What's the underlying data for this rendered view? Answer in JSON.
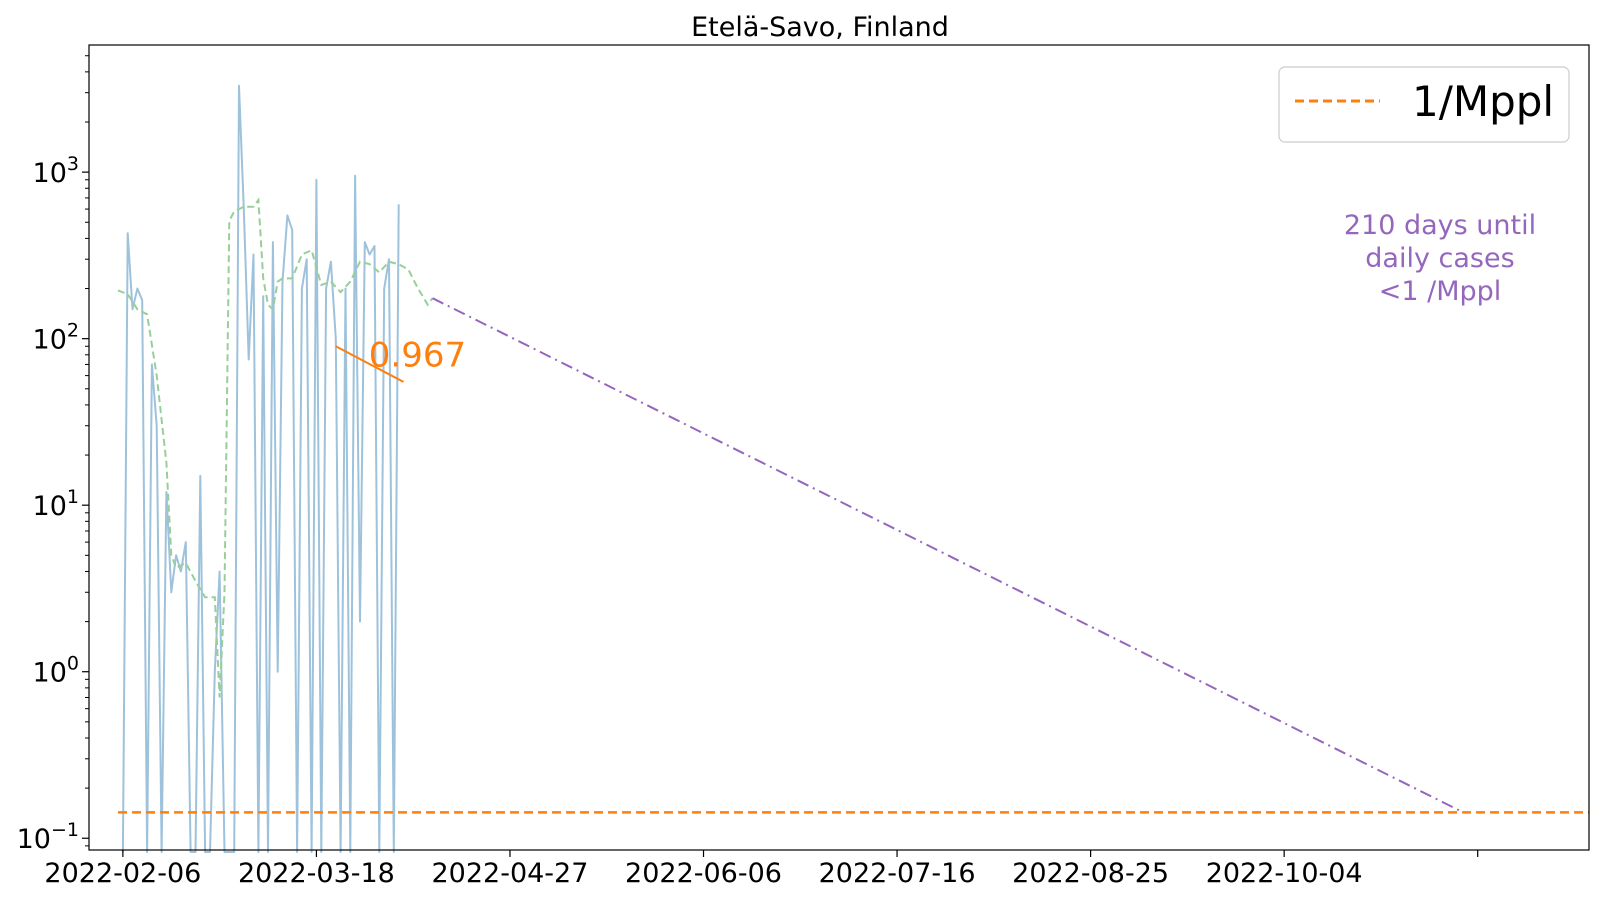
{
  "chart_data": {
    "type": "line",
    "title": "Etelä-Savo, Finland",
    "xlabel": "",
    "ylabel": "",
    "yscale": "log",
    "ylim": [
      0.085,
      5800
    ],
    "xlim": [
      "2022-01-30",
      "2022-12-06"
    ],
    "grid": false,
    "legend_position": "top-right",
    "legend": [
      "1/Mppl"
    ],
    "x_ticks": [
      "2022-02-06",
      "2022-03-18",
      "2022-04-27",
      "2022-06-06",
      "2022-07-16",
      "2022-08-25",
      "2022-10-04",
      "2022-11-13"
    ],
    "x_tick_labels": [
      "2022-02-06",
      "2022-03-18",
      "2022-04-27",
      "2022-06-06",
      "2022-07-16",
      "2022-08-25",
      "2022-10-04",
      ""
    ],
    "y_ticks": [
      {
        "value": 0.1,
        "mantissa": "10",
        "exponent": "−1"
      },
      {
        "value": 1,
        "mantissa": "10",
        "exponent": "0"
      },
      {
        "value": 10,
        "mantissa": "10",
        "exponent": "1"
      },
      {
        "value": 100,
        "mantissa": "10",
        "exponent": "2"
      },
      {
        "value": 1000,
        "mantissa": "10",
        "exponent": "3"
      }
    ],
    "series": [
      {
        "name": "",
        "role": "daily cases per million",
        "color": "#9ec2dc",
        "style": "solid",
        "x": [
          "2022-02-06",
          "2022-02-07",
          "2022-02-08",
          "2022-02-09",
          "2022-02-10",
          "2022-02-11",
          "2022-02-12",
          "2022-02-13",
          "2022-02-14",
          "2022-02-15",
          "2022-02-16",
          "2022-02-17",
          "2022-02-18",
          "2022-02-19",
          "2022-02-20",
          "2022-02-21",
          "2022-02-22",
          "2022-02-23",
          "2022-02-24",
          "2022-02-25",
          "2022-02-26",
          "2022-02-27",
          "2022-02-28",
          "2022-03-01",
          "2022-03-02",
          "2022-03-03",
          "2022-03-04",
          "2022-03-05",
          "2022-03-06",
          "2022-03-07",
          "2022-03-08",
          "2022-03-09",
          "2022-03-10",
          "2022-03-11",
          "2022-03-12",
          "2022-03-13",
          "2022-03-14",
          "2022-03-15",
          "2022-03-16",
          "2022-03-17",
          "2022-03-18",
          "2022-03-19",
          "2022-03-20",
          "2022-03-21",
          "2022-03-22",
          "2022-03-23",
          "2022-03-24",
          "2022-03-25",
          "2022-03-26",
          "2022-03-27",
          "2022-03-28",
          "2022-03-29",
          "2022-03-30",
          "2022-03-31",
          "2022-04-01",
          "2022-04-02",
          "2022-04-03",
          "2022-04-04"
        ],
        "y": [
          0,
          430,
          150,
          200,
          170,
          0,
          70,
          30,
          0,
          12,
          3,
          5,
          4,
          6,
          0,
          0,
          15,
          0,
          0,
          1,
          4,
          0,
          0,
          0,
          3300,
          600,
          75,
          320,
          0,
          180,
          0,
          380,
          1,
          220,
          550,
          450,
          0,
          200,
          300,
          0,
          900,
          0,
          200,
          290,
          100,
          0,
          200,
          0,
          950,
          2,
          380,
          320,
          360,
          0,
          200,
          300,
          0,
          640
        ]
      },
      {
        "name": "",
        "role": "smoothed average",
        "color": "#98cf98",
        "style": "dashed",
        "x": [
          "2022-02-05",
          "2022-02-07",
          "2022-02-09",
          "2022-02-11",
          "2022-02-13",
          "2022-02-15",
          "2022-02-16",
          "2022-02-17",
          "2022-02-19",
          "2022-02-21",
          "2022-02-23",
          "2022-02-25",
          "2022-02-26",
          "2022-02-27",
          "2022-02-28",
          "2022-03-01",
          "2022-03-03",
          "2022-03-05",
          "2022-03-06",
          "2022-03-07",
          "2022-03-08",
          "2022-03-09",
          "2022-03-10",
          "2022-03-11",
          "2022-03-13",
          "2022-03-15",
          "2022-03-17",
          "2022-03-19",
          "2022-03-21",
          "2022-03-23",
          "2022-03-25",
          "2022-03-27",
          "2022-03-29",
          "2022-03-31",
          "2022-04-02",
          "2022-04-04",
          "2022-04-06",
          "2022-04-08",
          "2022-04-10",
          "2022-04-11"
        ],
        "y": [
          195,
          185,
          150,
          140,
          60,
          18,
          5,
          4.2,
          4.5,
          3.5,
          2.8,
          2.8,
          0.7,
          3,
          510,
          580,
          620,
          620,
          680,
          230,
          160,
          150,
          220,
          230,
          230,
          320,
          340,
          210,
          220,
          190,
          220,
          290,
          280,
          250,
          290,
          280,
          260,
          200,
          160,
          175
        ]
      }
    ],
    "reference_line": {
      "label": "1/Mppl",
      "y": 0.143,
      "color": "#ff7f0e",
      "style": "dashed",
      "x_start": "2022-02-05",
      "x_end": "2022-12-06"
    },
    "projection": {
      "color": "#9467bd",
      "style": "dash-dot",
      "x": [
        "2022-04-11",
        "2022-11-10"
      ],
      "y": [
        175,
        0.143
      ]
    },
    "growth_segment": {
      "color": "#ff7f0e",
      "label": "0.967",
      "x": [
        "2022-03-22",
        "2022-04-05"
      ],
      "y": [
        90,
        55
      ]
    },
    "annotation": {
      "lines": [
        "210 days until",
        "daily cases",
        "<1 /Mppl"
      ],
      "color": "#9467bd"
    }
  }
}
